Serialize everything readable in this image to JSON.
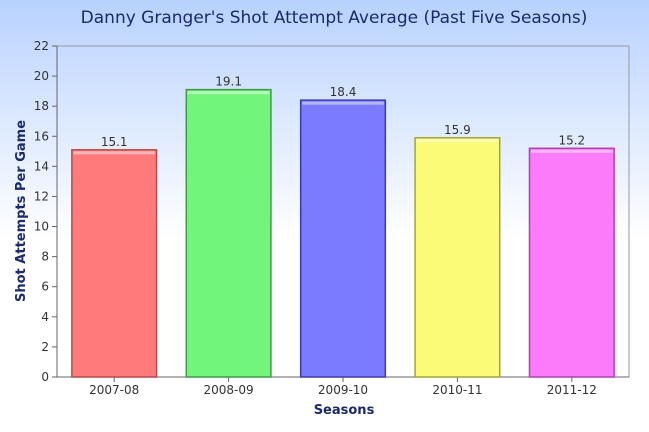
{
  "chart_data": {
    "type": "bar",
    "title": "Danny Granger's Shot Attempt Average (Past Five Seasons)",
    "xlabel": "Seasons",
    "ylabel": "Shot Attempts Per Game",
    "categories": [
      "2007-08",
      "2008-09",
      "2009-10",
      "2010-11",
      "2011-12"
    ],
    "values": [
      15.1,
      19.1,
      18.4,
      15.9,
      15.2
    ],
    "data_labels": [
      "15.1",
      "19.1",
      "18.4",
      "15.9",
      "15.2"
    ],
    "ylim": [
      0,
      22
    ],
    "yticks": [
      "0",
      "2",
      "4",
      "6",
      "8",
      "10",
      "12",
      "14",
      "16",
      "18",
      "20",
      "22"
    ],
    "grid": false,
    "legend": "none",
    "colors": [
      "#ff7b7b",
      "#72f57b",
      "#7b7bff",
      "#fbfb77",
      "#fb7bfb"
    ],
    "border_colors": [
      "#b84a4a",
      "#3d9c45",
      "#3b3bb0",
      "#a3a33b",
      "#b040b0"
    ],
    "background_gradient": [
      "#b8d2ff",
      "#ffffff"
    ]
  }
}
